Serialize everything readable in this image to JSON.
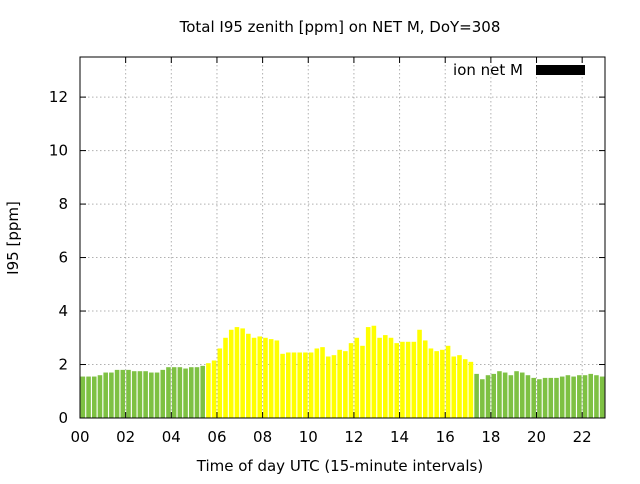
{
  "chart_data": {
    "type": "bar",
    "title": "Total I95 zenith [ppm] on NET M, DoY=308",
    "xlabel": "Time of day UTC (15-minute intervals)",
    "ylabel": "I95 [ppm]",
    "xlim": [
      0,
      23
    ],
    "ylim": [
      0,
      13.5
    ],
    "x_ticks": [
      {
        "value": 0,
        "label": "00"
      },
      {
        "value": 2,
        "label": "02"
      },
      {
        "value": 4,
        "label": "04"
      },
      {
        "value": 6,
        "label": "06"
      },
      {
        "value": 8,
        "label": "08"
      },
      {
        "value": 10,
        "label": "10"
      },
      {
        "value": 12,
        "label": "12"
      },
      {
        "value": 14,
        "label": "14"
      },
      {
        "value": 16,
        "label": "16"
      },
      {
        "value": 18,
        "label": "18"
      },
      {
        "value": 20,
        "label": "20"
      },
      {
        "value": 22,
        "label": "22"
      }
    ],
    "y_ticks": [
      {
        "value": 0,
        "label": "0"
      },
      {
        "value": 2,
        "label": "2"
      },
      {
        "value": 4,
        "label": "4"
      },
      {
        "value": 6,
        "label": "6"
      },
      {
        "value": 8,
        "label": "8"
      },
      {
        "value": 10,
        "label": "10"
      },
      {
        "value": 12,
        "label": "12"
      }
    ],
    "grid": true,
    "legend": {
      "label": "ion net M",
      "color": "#000000",
      "position": "top-right"
    },
    "interval_hours": 0.25,
    "values": [
      1.55,
      1.55,
      1.55,
      1.6,
      1.7,
      1.7,
      1.8,
      1.8,
      1.8,
      1.75,
      1.75,
      1.75,
      1.7,
      1.7,
      1.8,
      1.9,
      1.9,
      1.9,
      1.85,
      1.9,
      1.9,
      1.95,
      2.05,
      2.15,
      2.6,
      3.0,
      3.3,
      3.4,
      3.35,
      3.15,
      3.0,
      3.05,
      3.0,
      2.95,
      2.9,
      2.4,
      2.45,
      2.45,
      2.45,
      2.45,
      2.45,
      2.6,
      2.65,
      2.3,
      2.35,
      2.55,
      2.5,
      2.8,
      3.0,
      2.7,
      3.4,
      3.45,
      3.0,
      3.1,
      3.0,
      2.8,
      2.85,
      2.85,
      2.85,
      3.3,
      2.9,
      2.6,
      2.5,
      2.55,
      2.7,
      2.3,
      2.35,
      2.2,
      2.1,
      1.65,
      1.45,
      1.6,
      1.65,
      1.75,
      1.7,
      1.6,
      1.75,
      1.7,
      1.6,
      1.5,
      1.45,
      1.5,
      1.5,
      1.5,
      1.55,
      1.6,
      1.55,
      1.6,
      1.6,
      1.65,
      1.6,
      1.55
    ],
    "colors": {
      "green": "#7ec143",
      "yellow": "#ffff00",
      "grid": "#b0b0b0",
      "frame": "#000000"
    },
    "bar_colors": [
      "green",
      "green",
      "green",
      "green",
      "green",
      "green",
      "green",
      "green",
      "green",
      "green",
      "green",
      "green",
      "green",
      "green",
      "green",
      "green",
      "green",
      "green",
      "green",
      "green",
      "green",
      "green",
      "yellow",
      "yellow",
      "yellow",
      "yellow",
      "yellow",
      "yellow",
      "yellow",
      "yellow",
      "yellow",
      "yellow",
      "yellow",
      "yellow",
      "yellow",
      "yellow",
      "yellow",
      "yellow",
      "yellow",
      "yellow",
      "yellow",
      "yellow",
      "yellow",
      "yellow",
      "yellow",
      "yellow",
      "yellow",
      "yellow",
      "yellow",
      "yellow",
      "yellow",
      "yellow",
      "yellow",
      "yellow",
      "yellow",
      "yellow",
      "yellow",
      "yellow",
      "yellow",
      "yellow",
      "yellow",
      "yellow",
      "yellow",
      "yellow",
      "yellow",
      "yellow",
      "yellow",
      "yellow",
      "yellow",
      "green",
      "green",
      "green",
      "green",
      "green",
      "green",
      "green",
      "green",
      "green",
      "green",
      "green",
      "green",
      "green",
      "green",
      "green",
      "green",
      "green",
      "green",
      "green",
      "green",
      "green",
      "green",
      "green"
    ]
  }
}
